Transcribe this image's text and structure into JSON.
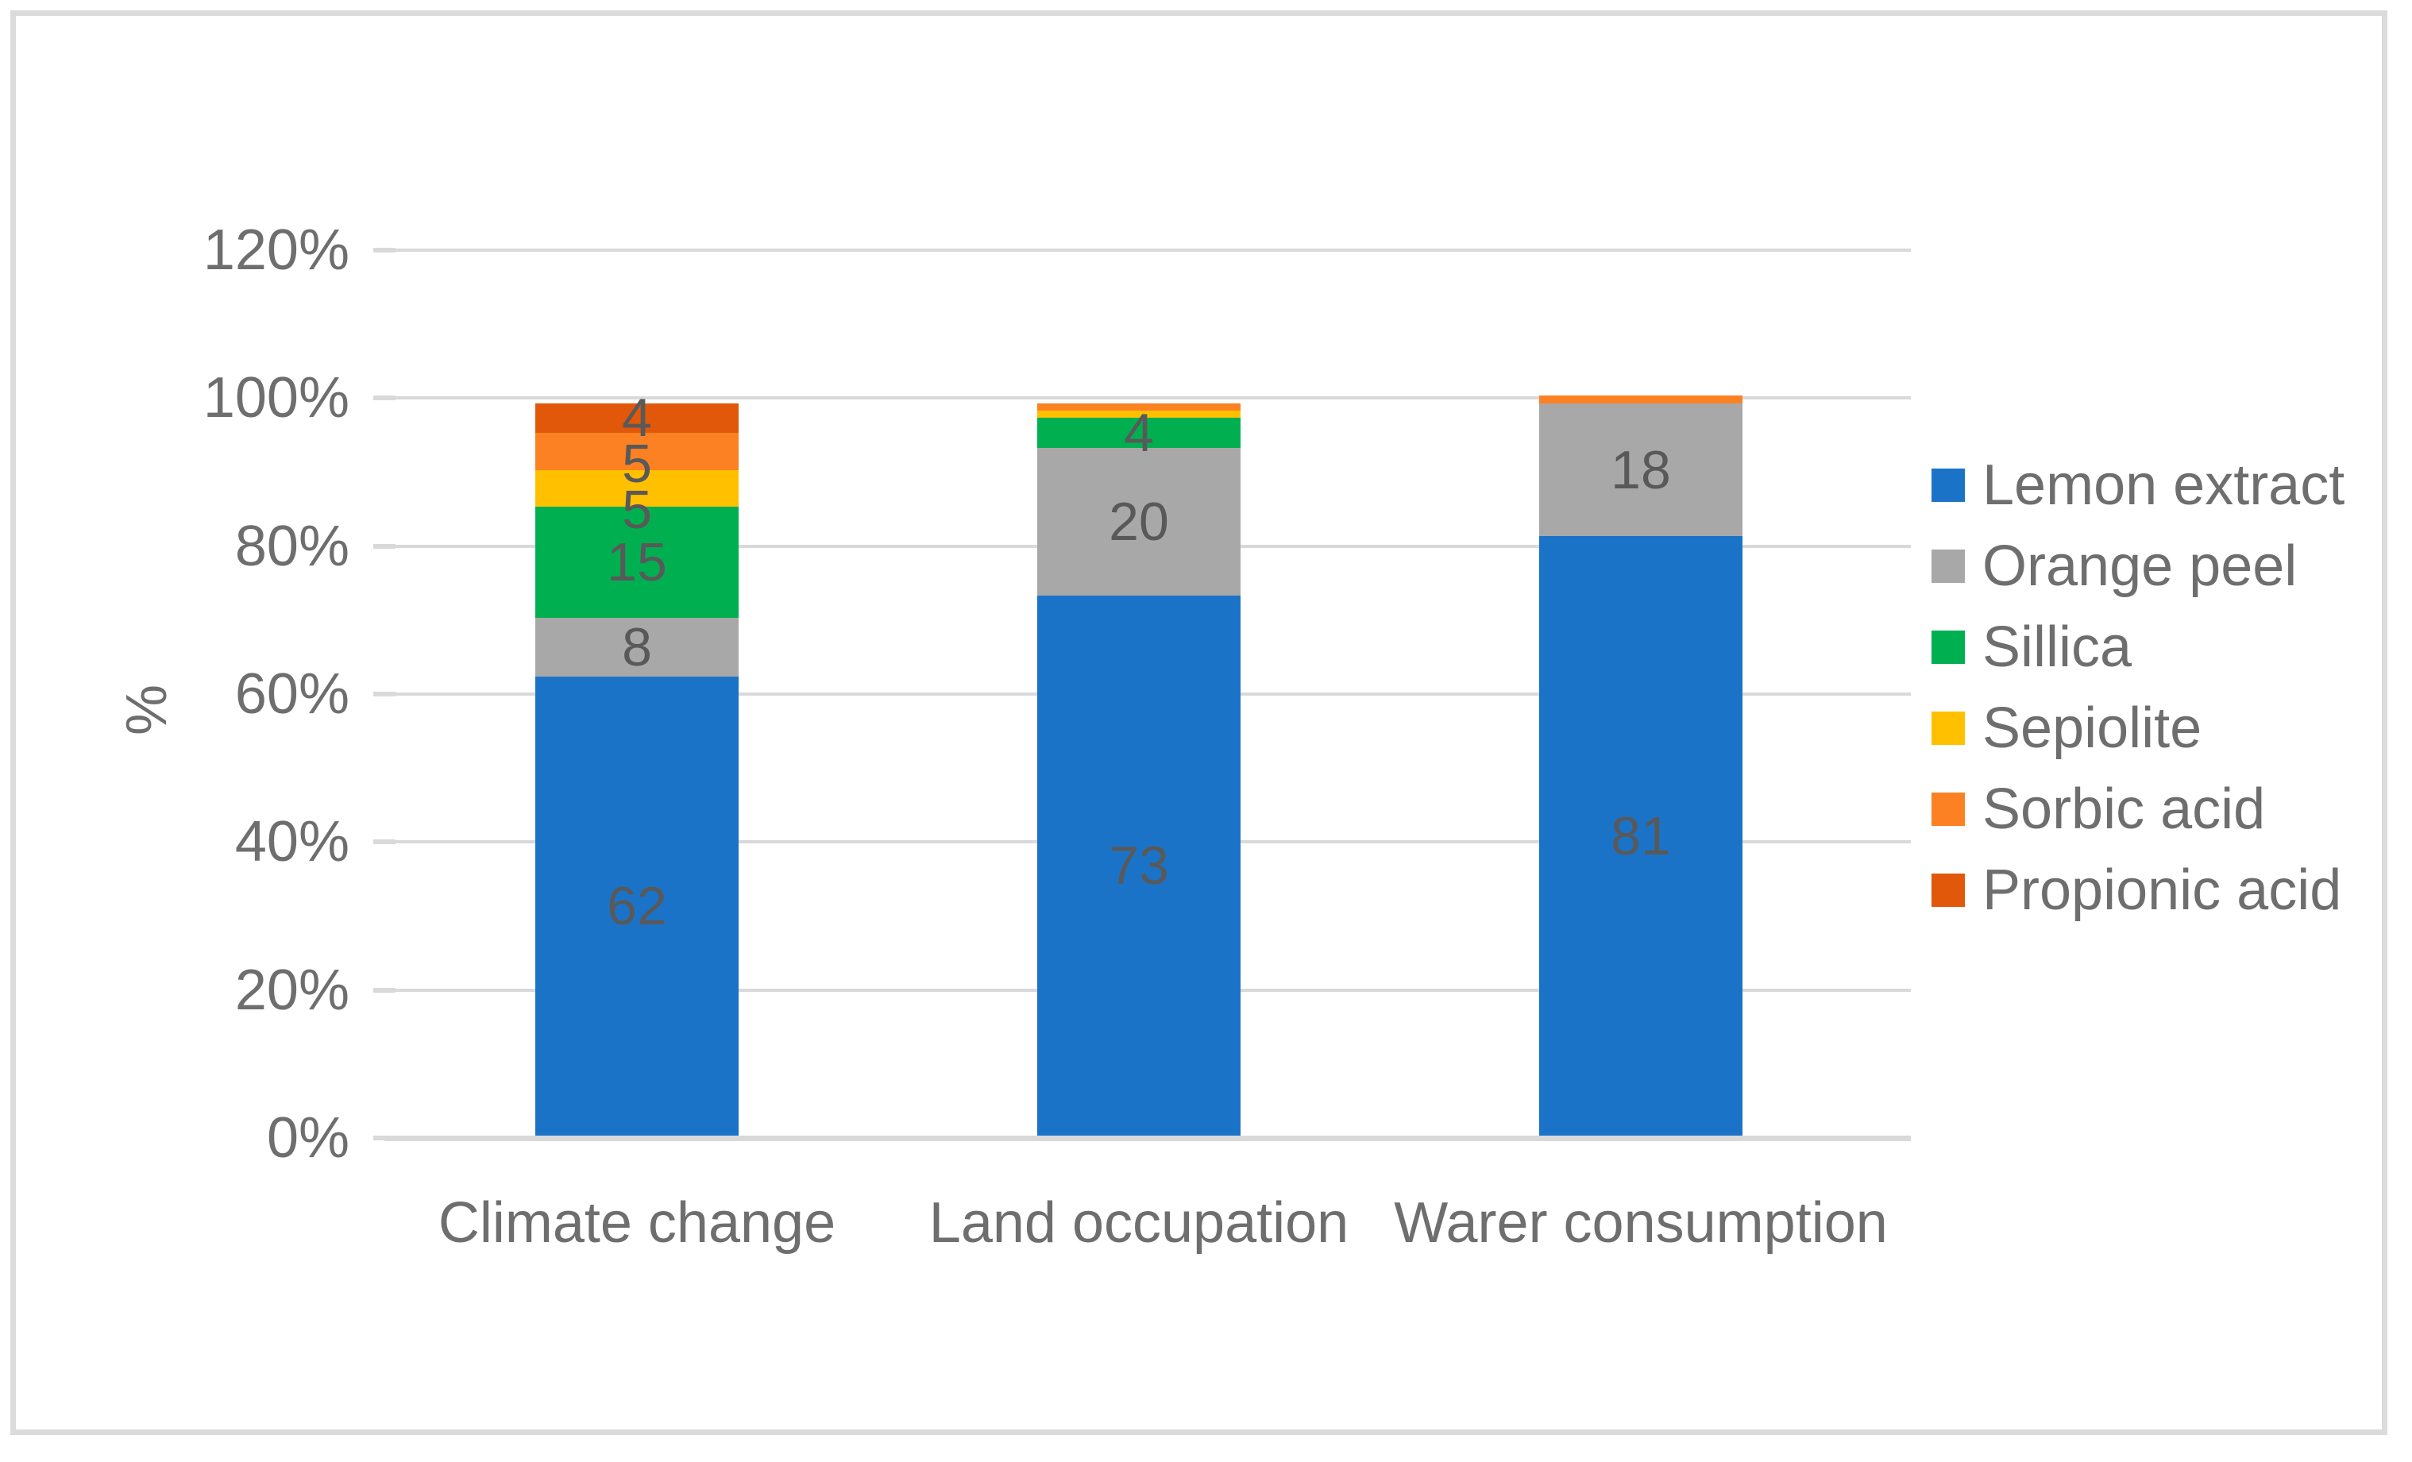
{
  "chart_data": {
    "type": "bar",
    "stacked": true,
    "orientation": "vertical",
    "title": "",
    "categories": [
      "Climate change",
      "Land occupation",
      "Warer consumption"
    ],
    "series": [
      {
        "name": "Lemon extract",
        "color": "#1B73C8",
        "values": [
          62,
          73,
          81
        ]
      },
      {
        "name": "Orange peel",
        "color": "#A8A8A8",
        "values": [
          8,
          20,
          18
        ]
      },
      {
        "name": "Sillica",
        "color": "#00B050",
        "values": [
          15,
          4,
          0
        ]
      },
      {
        "name": "Sepiolite",
        "color": "#FFC000",
        "values": [
          5,
          1,
          0
        ]
      },
      {
        "name": "Sorbic acid",
        "color": "#FB8122",
        "values": [
          5,
          1,
          1
        ]
      },
      {
        "name": "Propionic acid",
        "color": "#E1580A",
        "values": [
          4,
          0,
          0
        ]
      }
    ],
    "xlabel": "",
    "ylabel": "%",
    "ymin": 0,
    "ymax": 120,
    "y_tick_step": 20,
    "y_tick_labels": [
      "0%",
      "20%",
      "40%",
      "60%",
      "80%",
      "100%",
      "120%"
    ],
    "grid": true,
    "legend_position": "right",
    "data_labels_shown": true,
    "data_label_min_value": 2
  },
  "style": {
    "axis_text_color": "#6E6E6E",
    "data_label_color": "#595959",
    "gridline_color": "#D9D9D9",
    "axis_line_color": "#D9D9D9",
    "frame_border_color": "#DBDBDB",
    "background_color": "#FFFFFF"
  }
}
